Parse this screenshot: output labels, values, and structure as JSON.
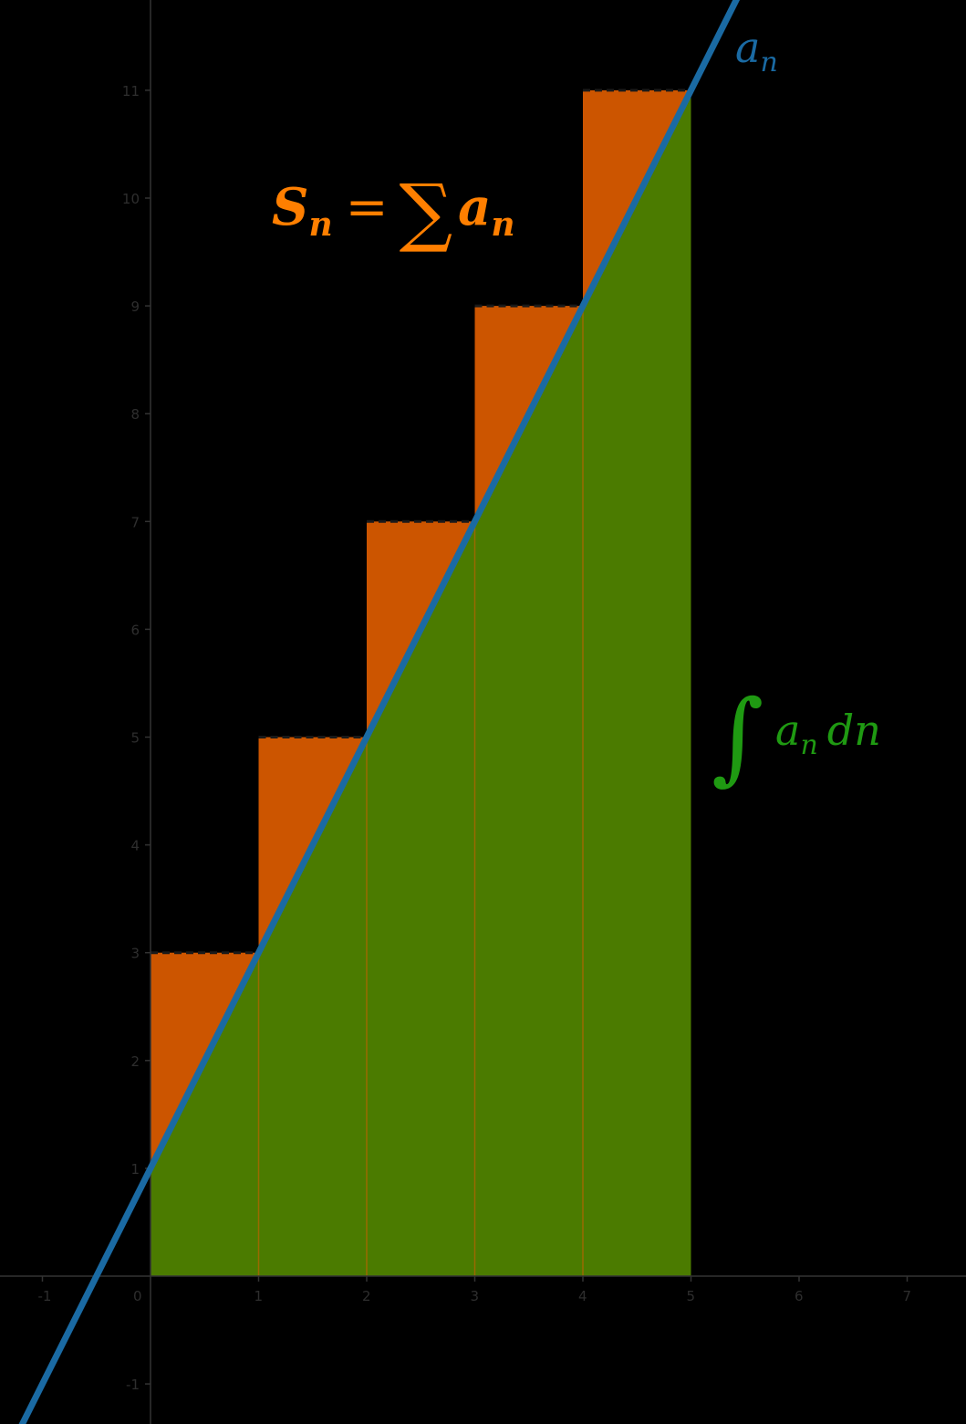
{
  "chart_data": {
    "type": "area",
    "xlim": [
      -1.4,
      7.5
    ],
    "ylim": [
      -1.35,
      11.85
    ],
    "grid": false,
    "x_ticks": [
      "-1",
      "0",
      "1",
      "2",
      "3",
      "4",
      "5",
      "6",
      "7"
    ],
    "y_ticks": [
      "-1",
      "1",
      "2",
      "3",
      "4",
      "5",
      "6",
      "7",
      "8",
      "9",
      "10",
      "11"
    ],
    "line": {
      "name": "a_n",
      "slope": 2,
      "intercept": 1,
      "color": "#1a6aa3"
    },
    "steps": {
      "x": [
        0,
        1,
        2,
        3,
        4
      ],
      "values": [
        3,
        5,
        7,
        9,
        11
      ],
      "width": 1,
      "color": "#cc5500"
    },
    "integral_area": {
      "x_start": 0,
      "x_end": 5,
      "color": "#4b7b00"
    },
    "annotations": {
      "line_label": {
        "base": "a",
        "sub": "n",
        "color": "#1a6aa3"
      },
      "sum_label": {
        "lhs_base": "S",
        "lhs_sub": "n",
        "op": "=",
        "symbol": "∑",
        "rhs_base": "a",
        "rhs_sub": "n",
        "color": "#ff7f00"
      },
      "integral_label": {
        "symbol": "∫",
        "base": "a",
        "sub": "n",
        "diff": "dn",
        "color": "#1f9a12"
      }
    }
  }
}
